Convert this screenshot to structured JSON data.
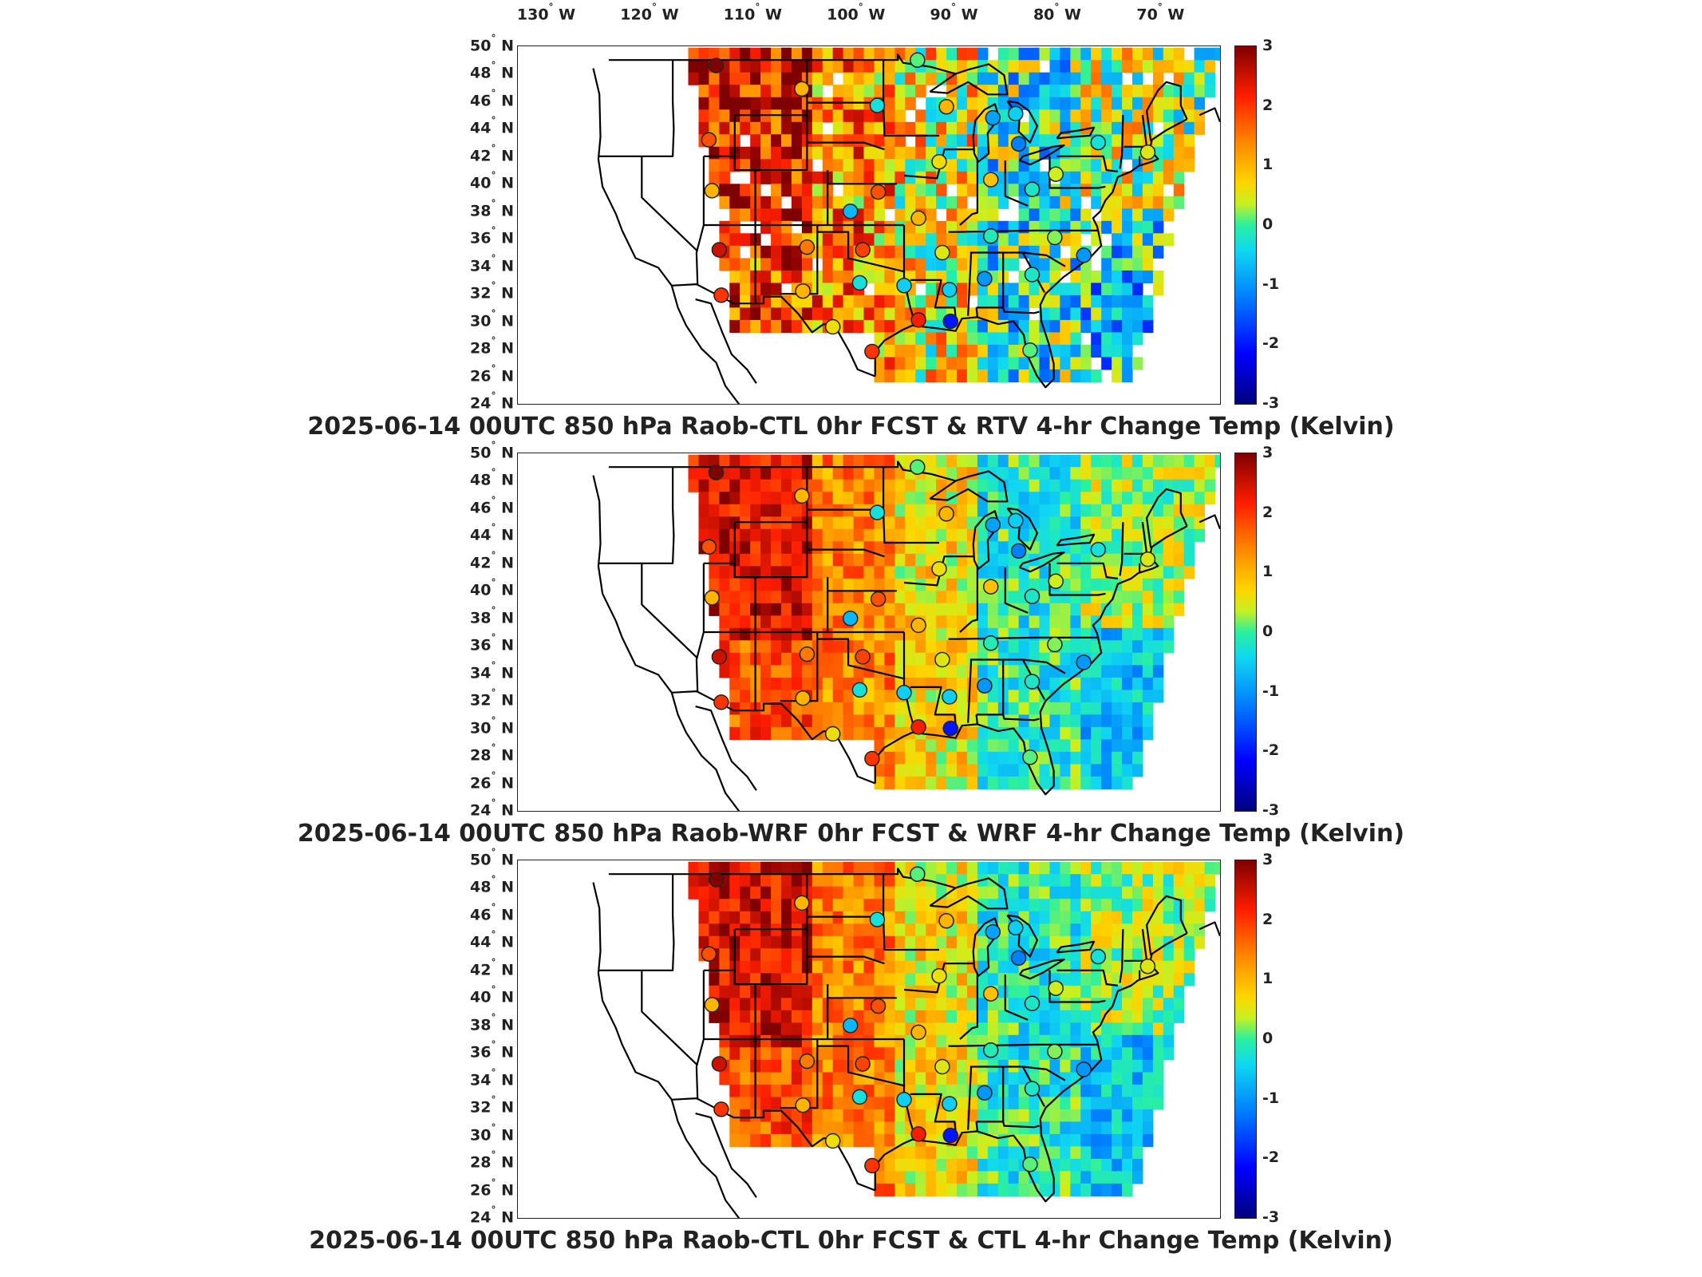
{
  "longitude_labels": [
    {
      "deg": "130",
      "hem": "W"
    },
    {
      "deg": "120",
      "hem": "W"
    },
    {
      "deg": "110",
      "hem": "W"
    },
    {
      "deg": "100",
      "hem": "W"
    },
    {
      "deg": "90",
      "hem": "W"
    },
    {
      "deg": "80",
      "hem": "W"
    },
    {
      "deg": "70",
      "hem": "W"
    }
  ],
  "latitude_labels": [
    {
      "deg": "50",
      "hem": "N"
    },
    {
      "deg": "48",
      "hem": "N"
    },
    {
      "deg": "46",
      "hem": "N"
    },
    {
      "deg": "44",
      "hem": "N"
    },
    {
      "deg": "42",
      "hem": "N"
    },
    {
      "deg": "40",
      "hem": "N"
    },
    {
      "deg": "38",
      "hem": "N"
    },
    {
      "deg": "36",
      "hem": "N"
    },
    {
      "deg": "34",
      "hem": "N"
    },
    {
      "deg": "32",
      "hem": "N"
    },
    {
      "deg": "30",
      "hem": "N"
    },
    {
      "deg": "28",
      "hem": "N"
    },
    {
      "deg": "26",
      "hem": "N"
    },
    {
      "deg": "24",
      "hem": "N"
    }
  ],
  "colorbar": {
    "ticks": [
      "3",
      "2",
      "1",
      "0",
      "-1",
      "-2",
      "-3"
    ],
    "min": -3,
    "max": 3,
    "colormap": "jet"
  },
  "panels": [
    {
      "title": "2025-06-14 00UTC 850 hPa Raob-CTL 0hr FCST & RTV 4-hr Change Temp (Kelvin)"
    },
    {
      "title": "2025-06-14 00UTC 850 hPa Raob-WRF 0hr FCST & WRF 4-hr Change Temp (Kelvin)"
    },
    {
      "title": "2025-06-14 00UTC 850 hPa Raob-CTL 0hr FCST & CTL 4-hr Change Temp (Kelvin)"
    }
  ],
  "map": {
    "extent": {
      "lon_min": -132,
      "lon_max": -64,
      "lat_min": 24,
      "lat_max": 50
    },
    "projection": "lat-lon",
    "colors": {
      "hot": "#d73027",
      "warm": "#fdae61",
      "neutral": "#ffe45c",
      "cool": "#74d6e8",
      "cold": "#2b5fd9"
    },
    "station_values": [
      {
        "lon": -112.8,
        "lat": 48.6,
        "value": 3.0
      },
      {
        "lon": -104.5,
        "lat": 46.9,
        "value": 1.0
      },
      {
        "lon": -97.2,
        "lat": 45.7,
        "value": -0.3
      },
      {
        "lon": -93.3,
        "lat": 49.0,
        "value": 0.1
      },
      {
        "lon": -90.5,
        "lat": 45.6,
        "value": 1.0
      },
      {
        "lon": -113.5,
        "lat": 43.2,
        "value": 1.8
      },
      {
        "lon": -86.0,
        "lat": 44.8,
        "value": -0.9
      },
      {
        "lon": -83.8,
        "lat": 45.1,
        "value": -0.5
      },
      {
        "lon": -83.5,
        "lat": 42.9,
        "value": -1.2
      },
      {
        "lon": -75.8,
        "lat": 43.0,
        "value": -0.3
      },
      {
        "lon": -113.2,
        "lat": 39.5,
        "value": 1.0
      },
      {
        "lon": -97.1,
        "lat": 39.4,
        "value": 1.8
      },
      {
        "lon": -99.8,
        "lat": 38.0,
        "value": -0.7
      },
      {
        "lon": -91.2,
        "lat": 41.6,
        "value": 0.6
      },
      {
        "lon": -86.2,
        "lat": 40.3,
        "value": 0.9
      },
      {
        "lon": -82.2,
        "lat": 39.6,
        "value": -0.2
      },
      {
        "lon": -79.9,
        "lat": 40.7,
        "value": 0.4
      },
      {
        "lon": -93.2,
        "lat": 37.5,
        "value": 1.0
      },
      {
        "lon": -112.5,
        "lat": 35.2,
        "value": 2.5
      },
      {
        "lon": -104.0,
        "lat": 35.4,
        "value": 1.5
      },
      {
        "lon": -98.6,
        "lat": 35.2,
        "value": 1.9
      },
      {
        "lon": -90.9,
        "lat": 35.0,
        "value": 0.5
      },
      {
        "lon": -86.2,
        "lat": 36.2,
        "value": -0.1
      },
      {
        "lon": -80.0,
        "lat": 36.1,
        "value": 0.2
      },
      {
        "lon": -77.2,
        "lat": 34.8,
        "value": -1.0
      },
      {
        "lon": -82.2,
        "lat": 33.4,
        "value": -0.2
      },
      {
        "lon": -86.8,
        "lat": 33.1,
        "value": -1.0
      },
      {
        "lon": -90.2,
        "lat": 32.3,
        "value": -0.5
      },
      {
        "lon": -94.6,
        "lat": 32.6,
        "value": -0.5
      },
      {
        "lon": -98.9,
        "lat": 32.8,
        "value": -0.3
      },
      {
        "lon": -104.4,
        "lat": 32.2,
        "value": 1.0
      },
      {
        "lon": -112.3,
        "lat": 31.9,
        "value": 2.0
      },
      {
        "lon": -93.2,
        "lat": 30.1,
        "value": 2.2
      },
      {
        "lon": -90.1,
        "lat": 30.0,
        "value": -2.0
      },
      {
        "lon": -97.7,
        "lat": 27.8,
        "value": 2.0
      },
      {
        "lon": -82.4,
        "lat": 27.9,
        "value": 0.1
      },
      {
        "lon": -101.5,
        "lat": 29.6,
        "value": 0.6
      },
      {
        "lon": -71.0,
        "lat": 42.3,
        "value": 0.5
      }
    ]
  }
}
